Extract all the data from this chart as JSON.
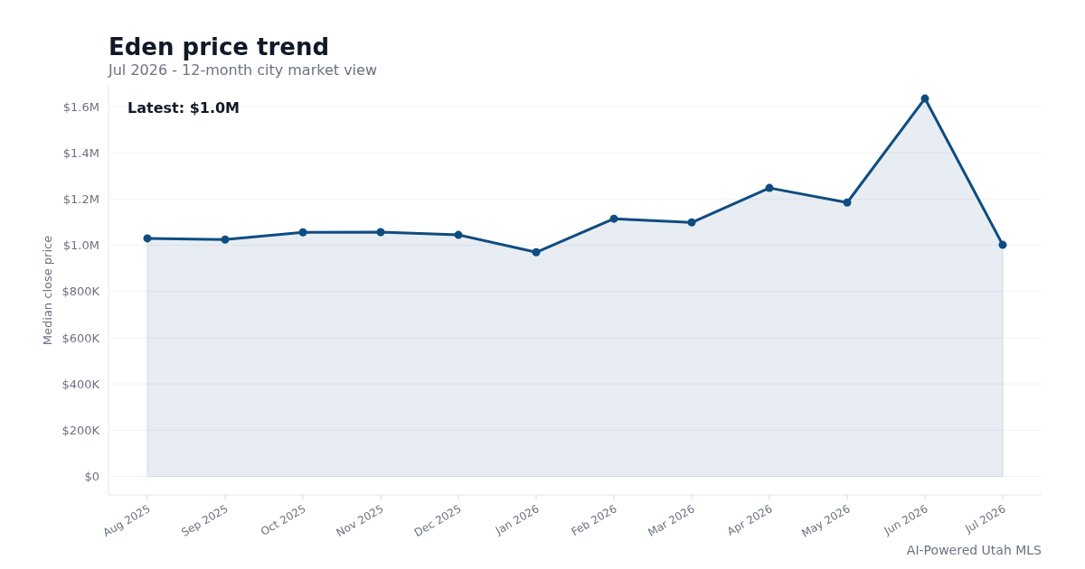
{
  "chart_data": {
    "type": "area",
    "title": "Eden price trend",
    "subtitle": "Jul 2026 - 12-month city market view",
    "ylabel": "Median close price",
    "categories": [
      "Aug 2025",
      "Sep 2025",
      "Oct 2025",
      "Nov 2025",
      "Dec 2025",
      "Jan 2026",
      "Feb 2026",
      "Mar 2026",
      "Apr 2026",
      "May 2026",
      "Jun 2026",
      "Jul 2026"
    ],
    "series": [
      {
        "color": "#0f4c81",
        "values": [
          1030000,
          1025000,
          1056000,
          1057000,
          1045000,
          970000,
          1115000,
          1099000,
          1248000,
          1185000,
          1635000,
          1002000
        ]
      }
    ],
    "ylim": [
      -80000,
      1690000
    ],
    "yticks": [
      {
        "value": 0,
        "label": "$0"
      },
      {
        "value": 200000,
        "label": "$200K"
      },
      {
        "value": 400000,
        "label": "$400K"
      },
      {
        "value": 600000,
        "label": "$600K"
      },
      {
        "value": 800000,
        "label": "$800K"
      },
      {
        "value": 1000000,
        "label": "$1.0M"
      },
      {
        "value": 1200000,
        "label": "$1.2M"
      },
      {
        "value": 1400000,
        "label": "$1.4M"
      },
      {
        "value": 1600000,
        "label": "$1.6M"
      }
    ],
    "grid": "y",
    "marker": "circle",
    "line_style": "solid",
    "annotations": [
      "Latest: $1.0M",
      "AI-Powered Utah MLS"
    ]
  }
}
